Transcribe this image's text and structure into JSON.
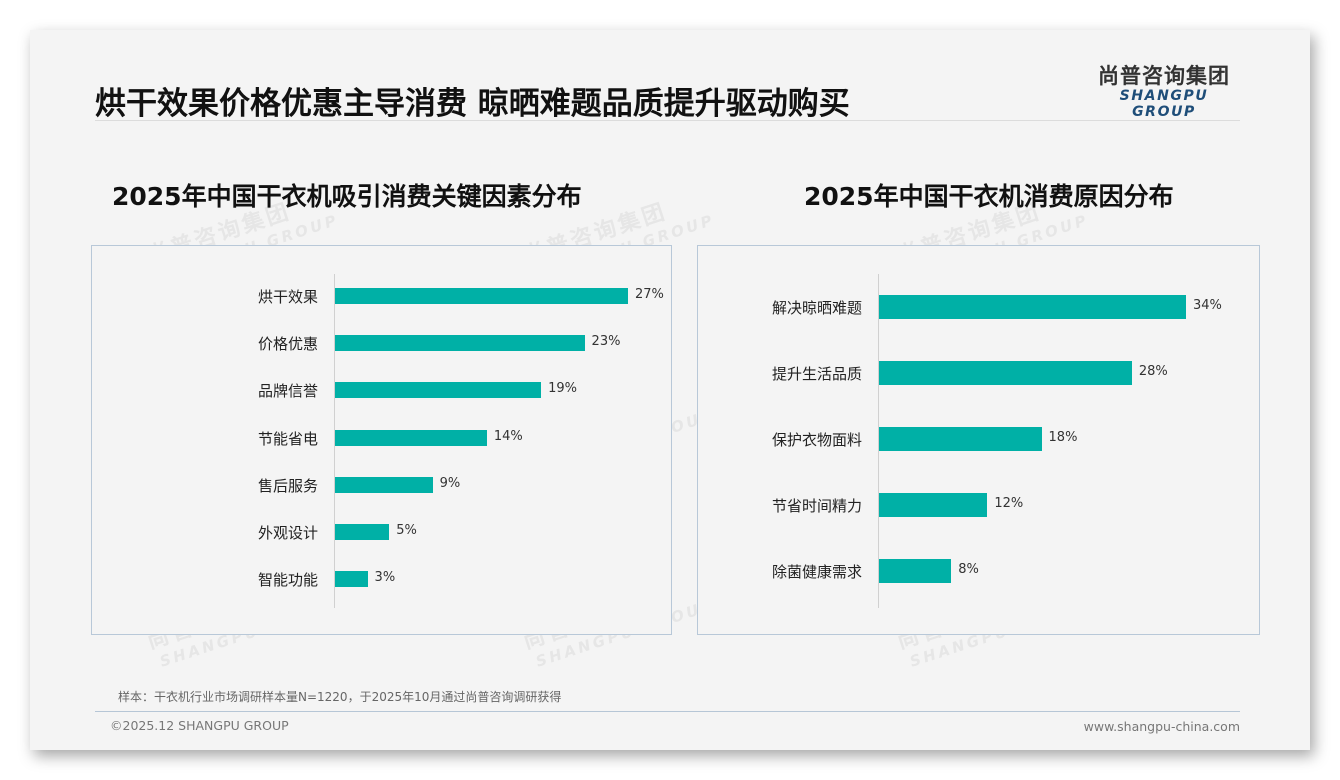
{
  "header": {
    "title": "烘干效果价格优惠主导消费 晾晒难题品质提升驱动购买",
    "logo_cn": "尚普咨询集团",
    "logo_en": "SHANGPU GROUP"
  },
  "watermark": {
    "cn": "尚普咨询集团",
    "en": "SHANGPU GROUP"
  },
  "colors": {
    "bar": "#00b0a6",
    "logo_en": "#1f4e79",
    "background": "#f4f4f4"
  },
  "charts": {
    "left": {
      "title": "2025年中国干衣机吸引消费关键因素分布",
      "rows": [
        {
          "label": "烘干效果",
          "value": 27,
          "text": "27%"
        },
        {
          "label": "价格优惠",
          "value": 23,
          "text": "23%"
        },
        {
          "label": "品牌信誉",
          "value": 19,
          "text": "19%"
        },
        {
          "label": "节能省电",
          "value": 14,
          "text": "14%"
        },
        {
          "label": "售后服务",
          "value": 9,
          "text": "9%"
        },
        {
          "label": "外观设计",
          "value": 5,
          "text": "5%"
        },
        {
          "label": "智能功能",
          "value": 3,
          "text": "3%"
        }
      ]
    },
    "right": {
      "title": "2025年中国干衣机消费原因分布",
      "rows": [
        {
          "label": "解决晾晒难题",
          "value": 34,
          "text": "34%"
        },
        {
          "label": "提升生活品质",
          "value": 28,
          "text": "28%"
        },
        {
          "label": "保护衣物面料",
          "value": 18,
          "text": "18%"
        },
        {
          "label": "节省时间精力",
          "value": 12,
          "text": "12%"
        },
        {
          "label": "除菌健康需求",
          "value": 8,
          "text": "8%"
        }
      ]
    }
  },
  "chart_data": [
    {
      "type": "bar",
      "orientation": "horizontal",
      "title": "2025年中国干衣机吸引消费关键因素分布",
      "categories": [
        "烘干效果",
        "价格优惠",
        "品牌信誉",
        "节能省电",
        "售后服务",
        "外观设计",
        "智能功能"
      ],
      "values": [
        27,
        23,
        19,
        14,
        9,
        5,
        3
      ],
      "unit": "%",
      "xlabel": "",
      "ylabel": "",
      "grid": false,
      "legend": null
    },
    {
      "type": "bar",
      "orientation": "horizontal",
      "title": "2025年中国干衣机消费原因分布",
      "categories": [
        "解决晾晒难题",
        "提升生活品质",
        "保护衣物面料",
        "节省时间精力",
        "除菌健康需求"
      ],
      "values": [
        34,
        28,
        18,
        12,
        8
      ],
      "unit": "%",
      "xlabel": "",
      "ylabel": "",
      "grid": false,
      "legend": null
    }
  ],
  "footer": {
    "note": "样本：干衣机行业市场调研样本量N=1220，于2025年10月通过尚普咨询调研获得",
    "copyright": "©2025.12 SHANGPU GROUP",
    "url": "www.shangpu-china.com"
  }
}
